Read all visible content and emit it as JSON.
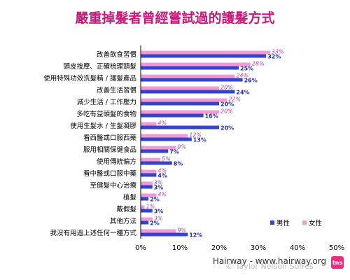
{
  "chart_data": {
    "type": "bar",
    "orientation": "horizontal",
    "title": "嚴重掉髮者曾經嘗試過的護髮方式",
    "categories": [
      "改善飲食習慣",
      "頭皮按摩、正確梳理頭髮",
      "使用特殊功效洗髮精 / 護髮產品",
      "改善生活習慣",
      "減少生活 / 工作壓力",
      "多吃有益頭髮的食物",
      "使用生髮水 / 生髮凝膠",
      "看西醫或口服西藥",
      "服用相關保健食品",
      "使用傳統偏方",
      "看中醫或口服中藥",
      "至健髮中心治療",
      "植髮",
      "戴假髮",
      "其他方法",
      "我沒有用過上述任何一種方式"
    ],
    "series": [
      {
        "name": "男性",
        "values": [
          32,
          25,
          26,
          24,
          20,
          16,
          20,
          13,
          7,
          8,
          4,
          3,
          2,
          3,
          2,
          12
        ],
        "labels": [
          "32%",
          "25%",
          "26%",
          "24%",
          "20%",
          "16%",
          "20%",
          "13%",
          "7%",
          "8%",
          "4%",
          "3%",
          "2%",
          "3%",
          "2%",
          "12%"
        ],
        "color": "#3344cc"
      },
      {
        "name": "女性",
        "values": [
          33,
          28,
          24,
          20,
          22,
          20,
          4,
          12,
          9,
          5,
          4,
          3,
          4,
          1,
          3,
          9
        ],
        "labels": [
          "33%",
          "28%",
          "24%",
          "20%",
          "22%",
          "20%",
          "4%",
          "12%",
          "9%",
          "5%",
          "4%",
          "3%",
          "4%",
          "1%",
          "3%",
          "9%"
        ],
        "color": "#f29ad6"
      }
    ],
    "xlim": [
      0,
      50
    ],
    "x_ticks": [
      "0%",
      "10%",
      "20%",
      "30%",
      "40%",
      "50%"
    ],
    "grid": false,
    "legend_position": "bottom-right"
  },
  "watermark": {
    "site": "Hairway - www.hairway.org",
    "brand": "tns",
    "faint": "© Taylor Nelson Sofres"
  }
}
